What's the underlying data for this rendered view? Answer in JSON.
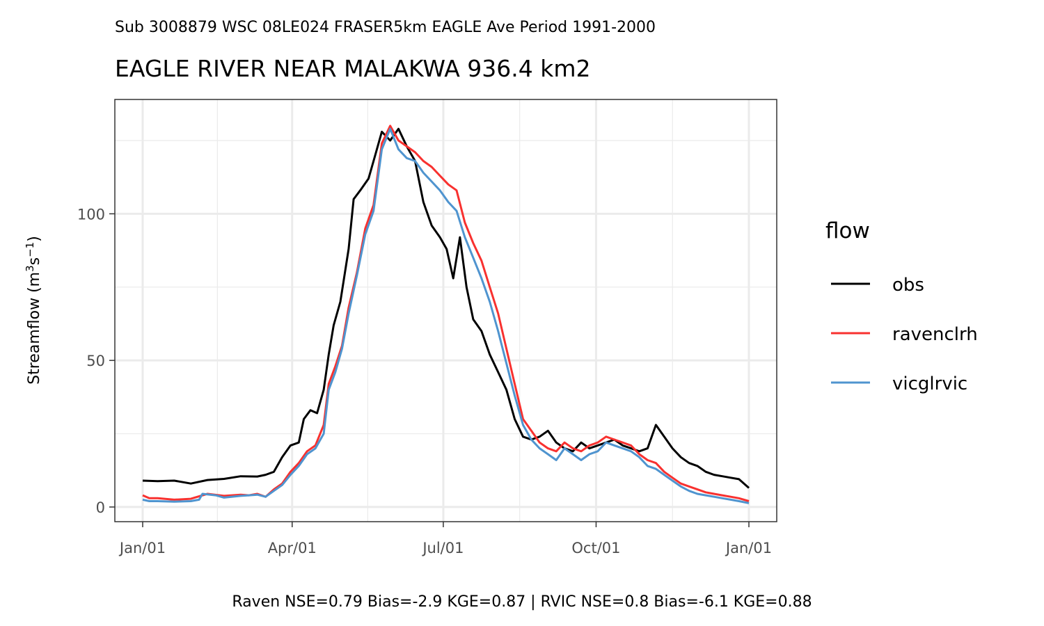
{
  "chart_data": {
    "type": "line",
    "subtitle": "Sub 3008879 WSC 08LE024 FRASER5km EAGLE Ave Period 1991-2000",
    "title": "EAGLE RIVER NEAR MALAKWA 936.4 km2",
    "xlabel": "",
    "ylabel": "Streamflow (m3s-1)",
    "ylabel_parts": {
      "base": "Streamflow (m",
      "sup1": "3",
      "mid": "s",
      "sup2": "−1",
      "end": ")"
    },
    "caption": "Raven NSE=0.79 Bias=-2.9 KGE=0.87 | RVIC NSE=0.8 Bias=-6.1 KGE=0.88",
    "x_type": "day-of-year",
    "xlim": [
      1,
      366
    ],
    "ylim": [
      -5,
      139
    ],
    "x_ticks": [
      {
        "day": 1,
        "label": "Jan/01"
      },
      {
        "day": 91,
        "label": "Apr/01"
      },
      {
        "day": 182,
        "label": "Jul/01"
      },
      {
        "day": 274,
        "label": "Oct/01"
      },
      {
        "day": 366,
        "label": "Jan/01"
      }
    ],
    "x_minor_ticks": [
      46,
      136.5,
      228,
      320
    ],
    "y_ticks": [
      0,
      50,
      100
    ],
    "y_minor_ticks": [
      25,
      75,
      125
    ],
    "grid": true,
    "legend": {
      "title": "flow",
      "placement": "right"
    },
    "series": [
      {
        "name": "obs",
        "color": "#000000",
        "points": [
          [
            1,
            9
          ],
          [
            10,
            8.8
          ],
          [
            20,
            9
          ],
          [
            30,
            8
          ],
          [
            40,
            9.2
          ],
          [
            50,
            9.6
          ],
          [
            60,
            10.5
          ],
          [
            70,
            10.4
          ],
          [
            75,
            11
          ],
          [
            80,
            12
          ],
          [
            85,
            17
          ],
          [
            90,
            21
          ],
          [
            95,
            22
          ],
          [
            98,
            30
          ],
          [
            102,
            33
          ],
          [
            106,
            32
          ],
          [
            110,
            40
          ],
          [
            113,
            52
          ],
          [
            116,
            62
          ],
          [
            120,
            70
          ],
          [
            125,
            88
          ],
          [
            128,
            105
          ],
          [
            132,
            108
          ],
          [
            137,
            112
          ],
          [
            141,
            120
          ],
          [
            145,
            128
          ],
          [
            150,
            125
          ],
          [
            155,
            129
          ],
          [
            160,
            123
          ],
          [
            165,
            118
          ],
          [
            170,
            104
          ],
          [
            175,
            96
          ],
          [
            180,
            92
          ],
          [
            184,
            88
          ],
          [
            188,
            78
          ],
          [
            192,
            92
          ],
          [
            196,
            75
          ],
          [
            200,
            64
          ],
          [
            205,
            60
          ],
          [
            210,
            52
          ],
          [
            215,
            46
          ],
          [
            220,
            40
          ],
          [
            225,
            30
          ],
          [
            230,
            24
          ],
          [
            235,
            23
          ],
          [
            240,
            24
          ],
          [
            245,
            26
          ],
          [
            250,
            22
          ],
          [
            255,
            20
          ],
          [
            260,
            19
          ],
          [
            265,
            22
          ],
          [
            270,
            20
          ],
          [
            275,
            21
          ],
          [
            280,
            22
          ],
          [
            285,
            23
          ],
          [
            290,
            21
          ],
          [
            295,
            20
          ],
          [
            300,
            19
          ],
          [
            305,
            20
          ],
          [
            310,
            28
          ],
          [
            315,
            24
          ],
          [
            320,
            20
          ],
          [
            325,
            17
          ],
          [
            330,
            15
          ],
          [
            335,
            14
          ],
          [
            340,
            12
          ],
          [
            345,
            11
          ],
          [
            350,
            10.5
          ],
          [
            355,
            10
          ],
          [
            360,
            9.5
          ],
          [
            366,
            6.5
          ]
        ]
      },
      {
        "name": "ravenclrh",
        "color": "#f8312f",
        "points": [
          [
            1,
            4
          ],
          [
            5,
            3
          ],
          [
            10,
            3
          ],
          [
            20,
            2.5
          ],
          [
            30,
            2.8
          ],
          [
            40,
            4.5
          ],
          [
            50,
            3.8
          ],
          [
            60,
            4.2
          ],
          [
            65,
            4
          ],
          [
            70,
            4.5
          ],
          [
            75,
            3.5
          ],
          [
            80,
            6
          ],
          [
            85,
            8
          ],
          [
            90,
            12
          ],
          [
            95,
            15
          ],
          [
            100,
            19
          ],
          [
            105,
            21
          ],
          [
            110,
            28
          ],
          [
            113,
            42
          ],
          [
            117,
            48
          ],
          [
            121,
            55
          ],
          [
            125,
            68
          ],
          [
            130,
            80
          ],
          [
            135,
            95
          ],
          [
            140,
            103
          ],
          [
            145,
            124
          ],
          [
            150,
            130
          ],
          [
            155,
            125
          ],
          [
            160,
            123
          ],
          [
            165,
            121
          ],
          [
            170,
            118
          ],
          [
            175,
            116
          ],
          [
            180,
            113
          ],
          [
            185,
            110
          ],
          [
            190,
            108
          ],
          [
            195,
            97
          ],
          [
            200,
            90
          ],
          [
            205,
            84
          ],
          [
            210,
            75
          ],
          [
            215,
            66
          ],
          [
            220,
            54
          ],
          [
            225,
            42
          ],
          [
            230,
            30
          ],
          [
            235,
            26
          ],
          [
            240,
            22
          ],
          [
            245,
            20
          ],
          [
            250,
            19
          ],
          [
            255,
            22
          ],
          [
            260,
            20
          ],
          [
            265,
            19
          ],
          [
            270,
            21
          ],
          [
            275,
            22
          ],
          [
            280,
            24
          ],
          [
            285,
            23
          ],
          [
            290,
            22
          ],
          [
            295,
            21
          ],
          [
            300,
            18
          ],
          [
            305,
            16
          ],
          [
            310,
            15
          ],
          [
            315,
            12
          ],
          [
            320,
            10
          ],
          [
            325,
            8
          ],
          [
            330,
            7
          ],
          [
            335,
            6
          ],
          [
            340,
            5
          ],
          [
            345,
            4.5
          ],
          [
            350,
            4
          ],
          [
            355,
            3.5
          ],
          [
            360,
            3
          ],
          [
            366,
            2
          ]
        ]
      },
      {
        "name": "vicglrvic",
        "color": "#4f94cf",
        "points": [
          [
            1,
            2.5
          ],
          [
            5,
            2
          ],
          [
            10,
            2
          ],
          [
            20,
            1.8
          ],
          [
            30,
            2
          ],
          [
            35,
            2.5
          ],
          [
            37,
            4.5
          ],
          [
            45,
            4
          ],
          [
            50,
            3.2
          ],
          [
            60,
            3.8
          ],
          [
            65,
            4
          ],
          [
            70,
            4.2
          ],
          [
            75,
            3.5
          ],
          [
            80,
            5.5
          ],
          [
            85,
            7.5
          ],
          [
            90,
            11
          ],
          [
            95,
            14
          ],
          [
            100,
            18
          ],
          [
            105,
            20
          ],
          [
            110,
            25
          ],
          [
            113,
            40
          ],
          [
            117,
            46
          ],
          [
            121,
            54
          ],
          [
            125,
            66
          ],
          [
            130,
            79
          ],
          [
            135,
            93
          ],
          [
            140,
            101
          ],
          [
            145,
            122
          ],
          [
            150,
            129
          ],
          [
            155,
            122
          ],
          [
            160,
            119
          ],
          [
            165,
            118
          ],
          [
            170,
            114
          ],
          [
            175,
            111
          ],
          [
            180,
            108
          ],
          [
            185,
            104
          ],
          [
            190,
            101
          ],
          [
            195,
            92
          ],
          [
            200,
            85
          ],
          [
            205,
            78
          ],
          [
            210,
            70
          ],
          [
            215,
            60
          ],
          [
            220,
            49
          ],
          [
            225,
            38
          ],
          [
            230,
            28
          ],
          [
            235,
            23
          ],
          [
            240,
            20
          ],
          [
            245,
            18
          ],
          [
            250,
            16
          ],
          [
            255,
            20
          ],
          [
            260,
            18
          ],
          [
            265,
            16
          ],
          [
            270,
            18
          ],
          [
            275,
            19
          ],
          [
            280,
            22
          ],
          [
            285,
            21
          ],
          [
            290,
            20
          ],
          [
            295,
            19
          ],
          [
            300,
            17
          ],
          [
            305,
            14
          ],
          [
            310,
            13
          ],
          [
            315,
            11
          ],
          [
            320,
            9
          ],
          [
            325,
            7
          ],
          [
            330,
            5.5
          ],
          [
            335,
            4.5
          ],
          [
            340,
            4
          ],
          [
            345,
            3.5
          ],
          [
            350,
            3
          ],
          [
            355,
            2.5
          ],
          [
            360,
            2
          ],
          [
            366,
            1.3
          ]
        ]
      }
    ]
  }
}
